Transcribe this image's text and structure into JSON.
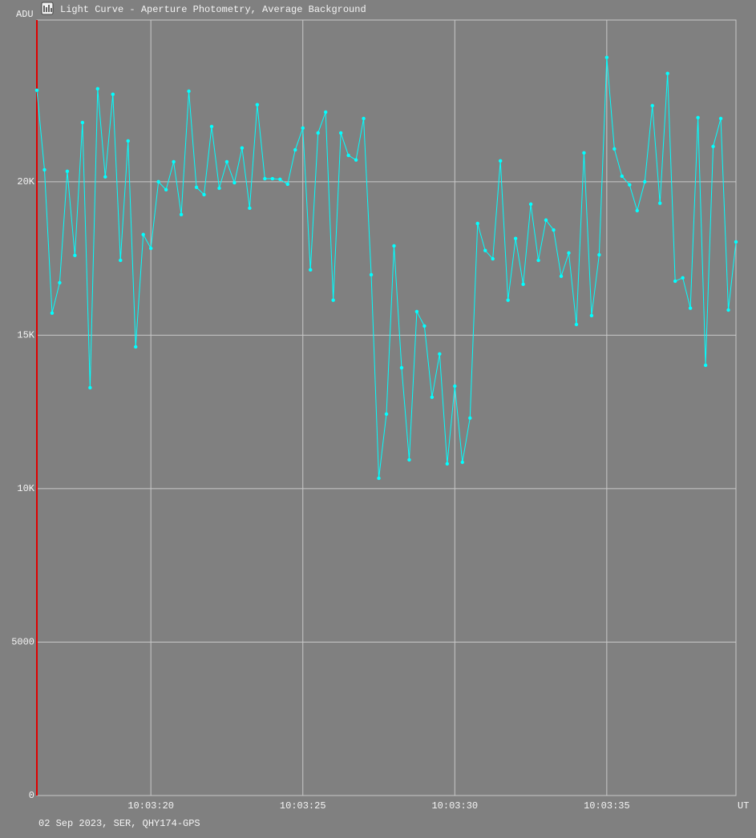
{
  "chart_data": {
    "type": "line",
    "title": "Light Curve - Aperture Photometry, Average Background",
    "y_label": "ADU",
    "x_label": "UT",
    "footer": "02 Sep 2023, SER, QHY174-GPS",
    "x": [
      16.25,
      16.5,
      16.75,
      17,
      17.25,
      17.5,
      17.75,
      18,
      18.25,
      18.5,
      18.75,
      19,
      19.25,
      19.5,
      19.75,
      20,
      20.25,
      20.5,
      20.75,
      21,
      21.25,
      21.5,
      21.75,
      22,
      22.25,
      22.5,
      22.75,
      23,
      23.25,
      23.5,
      23.75,
      24,
      24.25,
      24.5,
      24.75,
      25,
      25.25,
      25.5,
      25.75,
      26,
      26.25,
      26.5,
      26.75,
      27,
      27.25,
      27.5,
      27.75,
      28,
      28.25,
      28.5,
      28.75,
      29,
      29.25,
      29.5,
      29.75,
      30,
      30.25,
      30.5,
      30.75,
      31,
      31.25,
      31.5,
      31.75,
      32,
      32.25,
      32.5,
      32.75,
      33,
      33.25,
      33.5,
      33.75,
      34,
      34.25,
      34.5,
      34.75,
      35,
      35.25,
      35.5,
      35.75,
      36,
      36.25,
      36.5,
      36.75,
      37,
      37.25,
      37.5,
      37.75,
      38,
      38.25,
      38.5,
      38.75,
      39,
      39.25
    ],
    "series": [
      {
        "name": "Average Background",
        "color": "#00ffff",
        "values": [
          22980,
          20390,
          15720,
          16710,
          20340,
          17600,
          21930,
          13290,
          23030,
          20160,
          22850,
          17440,
          21330,
          14620,
          18280,
          17830,
          20000,
          19740,
          20650,
          18930,
          22950,
          19820,
          19580,
          21800,
          19790,
          20650,
          19970,
          21100,
          19140,
          22510,
          20100,
          20100,
          20080,
          19920,
          21040,
          21750,
          17130,
          21590,
          22270,
          16140,
          21590,
          20860,
          20710,
          22060,
          16970,
          10340,
          12430,
          17910,
          13940,
          10940,
          15770,
          15300,
          12980,
          14390,
          10810,
          13340,
          10860,
          12300,
          18640,
          17760,
          17490,
          20680,
          16140,
          18150,
          16660,
          19270,
          17440,
          18750,
          18430,
          16920,
          17680,
          15350,
          20940,
          15640,
          17620,
          24050,
          21070,
          20180,
          19900,
          19060,
          20000,
          22480,
          19300,
          23530,
          16760,
          16870,
          15880,
          22090,
          14020,
          21150,
          22060,
          15820,
          18040
        ]
      }
    ],
    "xlim": [
      16.25,
      39.25
    ],
    "xticks": [
      {
        "value": 20,
        "label": "10:03:20"
      },
      {
        "value": 25,
        "label": "10:03:25"
      },
      {
        "value": 30,
        "label": "10:03:30"
      },
      {
        "value": 35,
        "label": "10:03:35"
      }
    ],
    "ylim": [
      0,
      25270
    ],
    "yticks": [
      0,
      5000,
      {
        "value": 10000,
        "label": "10K"
      },
      {
        "value": 15000,
        "label": "15K"
      },
      {
        "value": 20000,
        "label": "20K"
      }
    ],
    "grid": true
  }
}
